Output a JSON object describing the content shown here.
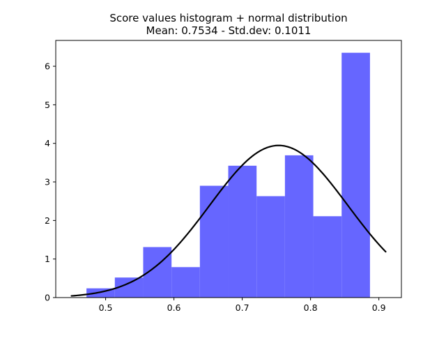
{
  "chart_data": {
    "type": "bar",
    "title": "Score values histogram + normal distribution",
    "subtitle": "Mean: 0.7534 - Std.dev: 0.1011",
    "xlabel": "",
    "ylabel": "",
    "xlim": [
      0.427,
      0.933
    ],
    "ylim": [
      0,
      6.67
    ],
    "grid": false,
    "legend": "none",
    "x_ticks": [
      0.5,
      0.6,
      0.7,
      0.8,
      0.9
    ],
    "x_tick_labels": [
      "0.5",
      "0.6",
      "0.7",
      "0.8",
      "0.9"
    ],
    "y_ticks": [
      0,
      1,
      2,
      3,
      4,
      5,
      6
    ],
    "y_tick_labels": [
      "0",
      "1",
      "2",
      "3",
      "4",
      "5",
      "6"
    ],
    "histogram": {
      "bin_edges": [
        0.472,
        0.5135,
        0.555,
        0.5965,
        0.638,
        0.6795,
        0.721,
        0.7625,
        0.804,
        0.8455,
        0.887
      ],
      "values": [
        0.24,
        0.52,
        1.31,
        0.79,
        2.9,
        3.42,
        2.63,
        3.69,
        2.11,
        6.35
      ],
      "color": "#6666ff"
    },
    "normal_curve": {
      "mean": 0.7534,
      "std": 0.1011,
      "x_range": [
        0.45,
        0.91
      ],
      "color": "#000000"
    }
  }
}
